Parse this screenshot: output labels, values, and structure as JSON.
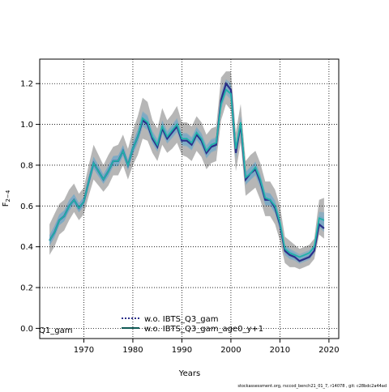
{
  "chart_data": {
    "type": "line",
    "title": "",
    "xlabel": "Years",
    "ylabel": "F",
    "ylabel_sub": "2−4",
    "xlim": [
      1961,
      2022
    ],
    "ylim": [
      -0.05,
      1.32
    ],
    "xticks": [
      1970,
      1980,
      1990,
      2000,
      2010,
      2020
    ],
    "yticks": [
      0.0,
      0.2,
      0.4,
      0.6,
      0.8,
      1.0,
      1.2
    ],
    "xtick_labels": [
      "1970",
      "1980",
      "1990",
      "2000",
      "2010",
      "2020"
    ],
    "ytick_labels": [
      "0.0",
      "0.2",
      "0.4",
      "0.6",
      "0.8",
      "1.0",
      "1.2"
    ],
    "grid": true,
    "legend_position": "bottom",
    "legend_partial_label": "Q1_gam",
    "x": [
      1963,
      1964,
      1965,
      1966,
      1967,
      1968,
      1969,
      1970,
      1971,
      1972,
      1973,
      1974,
      1975,
      1976,
      1977,
      1978,
      1979,
      1980,
      1981,
      1982,
      1983,
      1984,
      1985,
      1986,
      1987,
      1988,
      1989,
      1990,
      1991,
      1992,
      1993,
      1994,
      1995,
      1996,
      1997,
      1998,
      1999,
      2000,
      2001,
      2002,
      2003,
      2004,
      2005,
      2006,
      2007,
      2008,
      2009,
      2010,
      2011,
      2012,
      2013,
      2014,
      2015,
      2016,
      2017,
      2018,
      2019
    ],
    "series": [
      {
        "name": "w.o. IBTS_Q3_gam",
        "color": "#2b2f8a",
        "band_color": "#6fa8c8",
        "dashed": true,
        "values": [
          0.43,
          0.47,
          0.53,
          0.55,
          0.6,
          0.63,
          0.59,
          0.62,
          0.72,
          0.81,
          0.77,
          0.73,
          0.77,
          0.82,
          0.82,
          0.87,
          0.8,
          0.88,
          0.94,
          1.02,
          1.0,
          0.93,
          0.89,
          0.98,
          0.93,
          0.96,
          0.99,
          0.92,
          0.92,
          0.9,
          0.95,
          0.92,
          0.86,
          0.89,
          0.9,
          1.12,
          1.2,
          1.17,
          0.86,
          1.0,
          0.73,
          0.76,
          0.78,
          0.72,
          0.63,
          0.63,
          0.59,
          0.51,
          0.38,
          0.36,
          0.35,
          0.33,
          0.34,
          0.35,
          0.38,
          0.51,
          0.49
        ],
        "lower": [
          0.36,
          0.4,
          0.46,
          0.48,
          0.53,
          0.57,
          0.53,
          0.56,
          0.65,
          0.73,
          0.7,
          0.67,
          0.7,
          0.75,
          0.75,
          0.8,
          0.73,
          0.8,
          0.85,
          0.93,
          0.92,
          0.86,
          0.82,
          0.9,
          0.86,
          0.88,
          0.91,
          0.85,
          0.84,
          0.82,
          0.87,
          0.84,
          0.78,
          0.81,
          0.82,
          1.02,
          1.1,
          1.07,
          0.77,
          0.91,
          0.65,
          0.67,
          0.69,
          0.63,
          0.55,
          0.55,
          0.51,
          0.43,
          0.32,
          0.3,
          0.3,
          0.29,
          0.3,
          0.31,
          0.34,
          0.46,
          0.44
        ],
        "upper": [
          0.51,
          0.56,
          0.61,
          0.63,
          0.68,
          0.71,
          0.66,
          0.69,
          0.8,
          0.9,
          0.85,
          0.8,
          0.85,
          0.89,
          0.9,
          0.95,
          0.88,
          0.97,
          1.04,
          1.13,
          1.11,
          1.02,
          0.98,
          1.08,
          1.02,
          1.05,
          1.09,
          1.01,
          1.01,
          0.99,
          1.04,
          1.01,
          0.95,
          0.98,
          0.99,
          1.23,
          1.26,
          1.26,
          0.96,
          1.1,
          0.82,
          0.85,
          0.87,
          0.81,
          0.72,
          0.72,
          0.68,
          0.6,
          0.45,
          0.43,
          0.41,
          0.39,
          0.4,
          0.41,
          0.44,
          0.63,
          0.64
        ]
      },
      {
        "name": "w.o. IBTS_Q3_gam_age0_y+1",
        "color": "#20b2aa",
        "band_color": "#6fa8c8",
        "dashed": false,
        "values": [
          0.43,
          0.47,
          0.53,
          0.55,
          0.6,
          0.63,
          0.59,
          0.62,
          0.72,
          0.81,
          0.77,
          0.73,
          0.77,
          0.82,
          0.82,
          0.87,
          0.8,
          0.88,
          0.94,
          1.03,
          1.01,
          0.94,
          0.9,
          0.99,
          0.94,
          0.97,
          1.0,
          0.93,
          0.93,
          0.91,
          0.96,
          0.93,
          0.87,
          0.9,
          0.91,
          1.1,
          1.17,
          1.15,
          0.88,
          1.01,
          0.74,
          0.76,
          0.79,
          0.73,
          0.64,
          0.63,
          0.6,
          0.52,
          0.39,
          0.37,
          0.36,
          0.35,
          0.36,
          0.37,
          0.4,
          0.54,
          0.53
        ],
        "lower": [
          0.36,
          0.4,
          0.46,
          0.48,
          0.53,
          0.57,
          0.53,
          0.56,
          0.65,
          0.73,
          0.7,
          0.67,
          0.7,
          0.75,
          0.75,
          0.8,
          0.73,
          0.8,
          0.85,
          0.93,
          0.92,
          0.86,
          0.82,
          0.9,
          0.86,
          0.88,
          0.91,
          0.85,
          0.84,
          0.82,
          0.87,
          0.84,
          0.78,
          0.81,
          0.82,
          1.02,
          1.1,
          1.07,
          0.77,
          0.91,
          0.65,
          0.67,
          0.69,
          0.63,
          0.55,
          0.55,
          0.51,
          0.43,
          0.32,
          0.3,
          0.3,
          0.29,
          0.3,
          0.31,
          0.34,
          0.46,
          0.44
        ],
        "upper": [
          0.51,
          0.56,
          0.61,
          0.63,
          0.68,
          0.71,
          0.66,
          0.69,
          0.8,
          0.9,
          0.85,
          0.8,
          0.85,
          0.89,
          0.9,
          0.95,
          0.88,
          0.97,
          1.04,
          1.13,
          1.11,
          1.02,
          0.98,
          1.08,
          1.02,
          1.05,
          1.09,
          1.01,
          1.01,
          0.99,
          1.04,
          1.01,
          0.95,
          0.98,
          0.99,
          1.23,
          1.26,
          1.26,
          0.96,
          1.1,
          0.82,
          0.85,
          0.87,
          0.81,
          0.72,
          0.72,
          0.68,
          0.6,
          0.45,
          0.43,
          0.41,
          0.39,
          0.4,
          0.41,
          0.44,
          0.63,
          0.64
        ]
      }
    ],
    "footer": "stockassessment.org, rsccod_bench21_01_7, r14078 , git: c28bdc2a44ad"
  }
}
